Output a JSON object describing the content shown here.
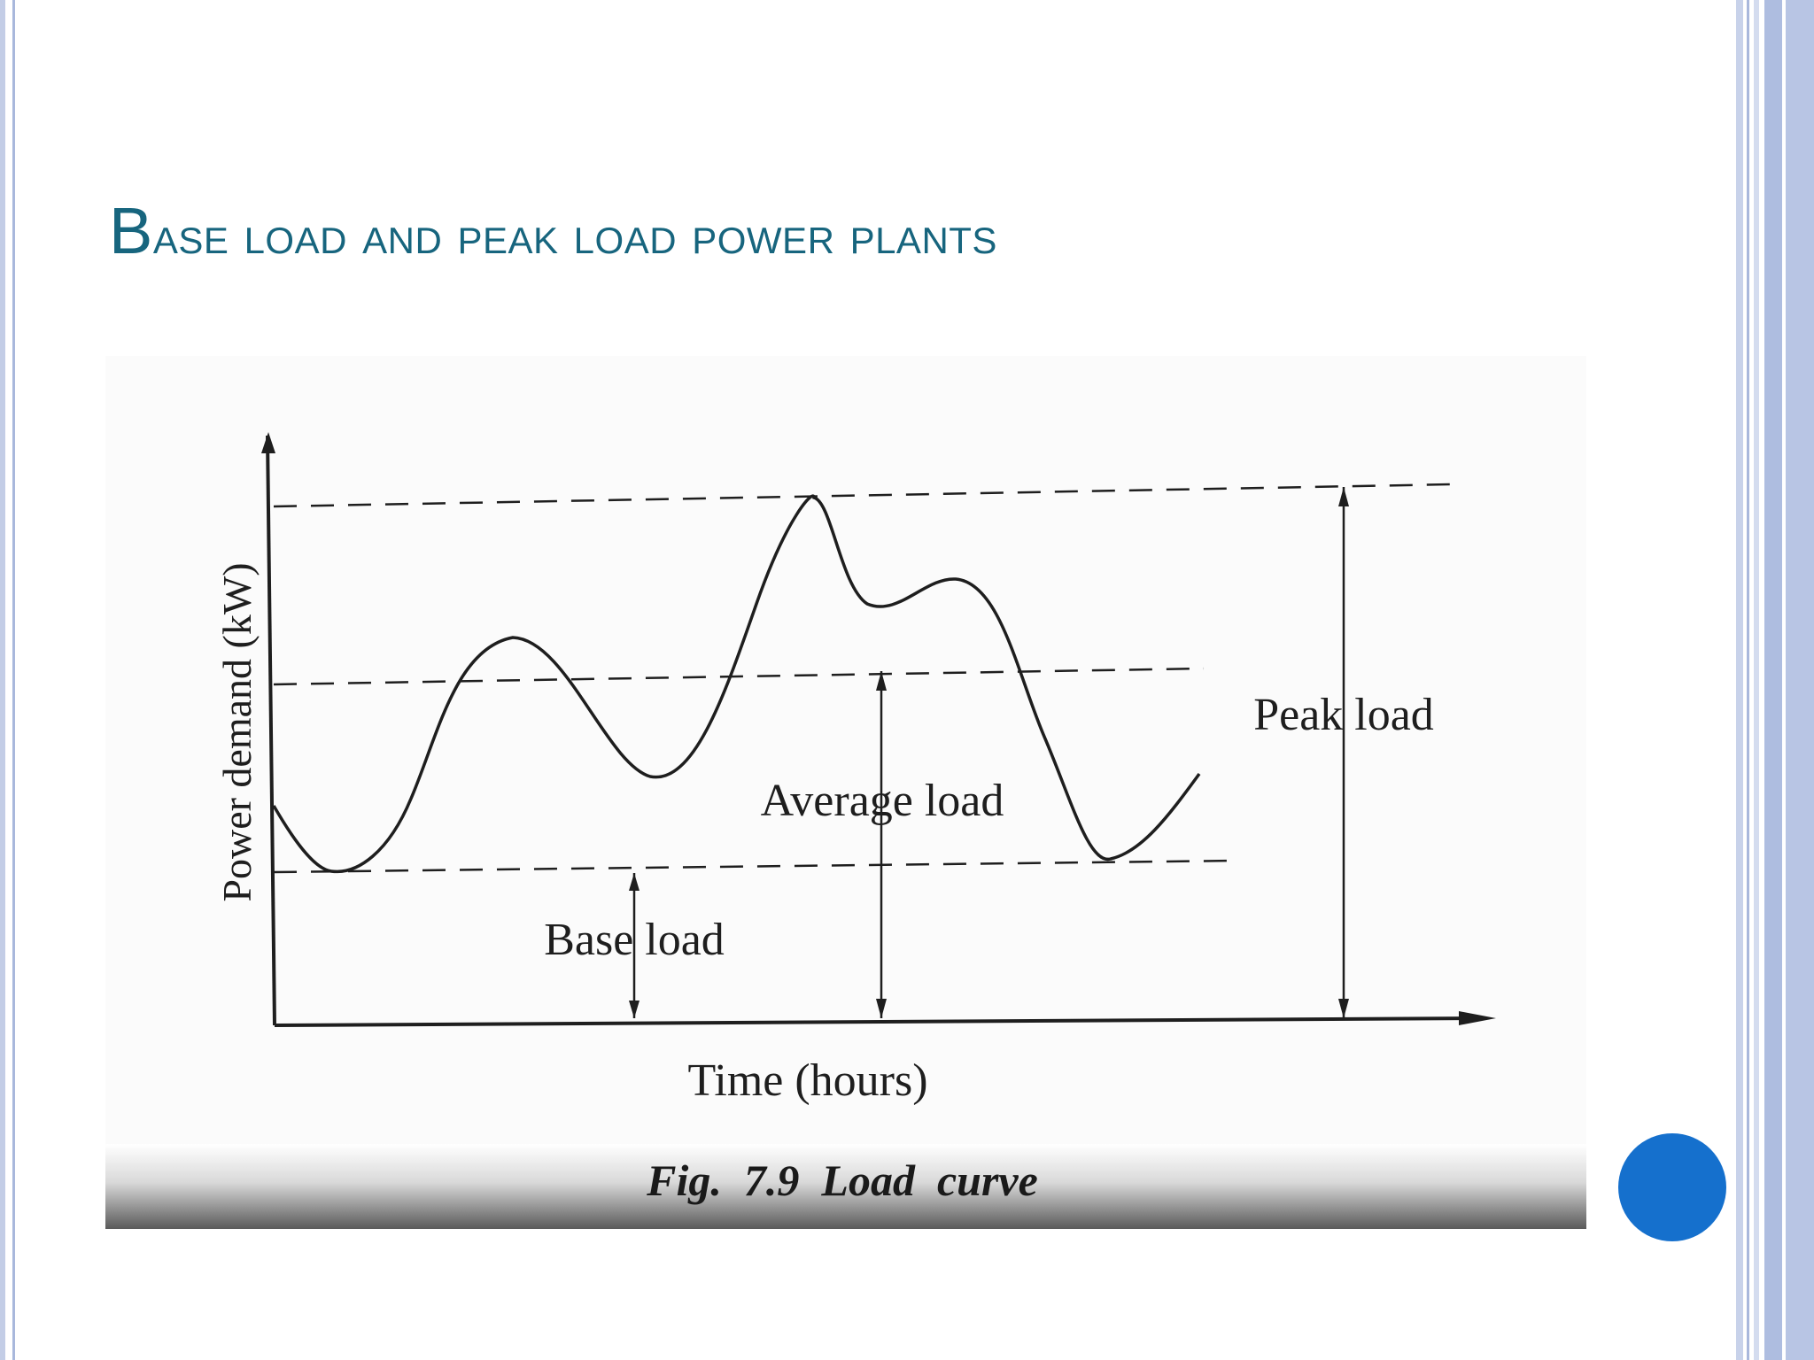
{
  "slide": {
    "title_first_letter": "B",
    "title_rest": "ase load and peak load power plants"
  },
  "figure": {
    "y_axis_label": "Power demand (kW)",
    "x_axis_label": "Time (hours)",
    "caption": "Fig.  7.9  Load  curve",
    "annotations": {
      "base_load": "Base load",
      "average_load": "Average load",
      "peak_load": "Peak load"
    }
  },
  "colors": {
    "title": "#17657e",
    "ink": "#1e1e1e",
    "accent_dot": "#1570cd",
    "frame_stripe": "#a9b8dc"
  }
}
